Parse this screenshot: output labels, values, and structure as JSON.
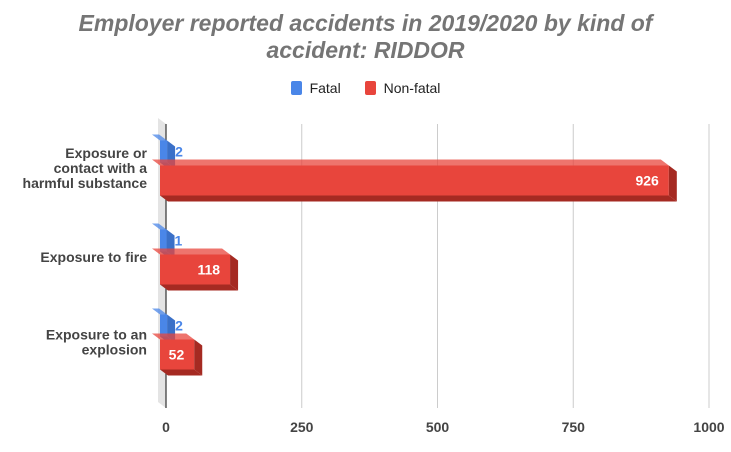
{
  "chart_data": {
    "type": "bar",
    "orientation": "horizontal",
    "title_lines": [
      "Employer reported accidents in 2019/2020 by kind of",
      "accident: RIDDOR"
    ],
    "categories": [
      [
        "Exposure or",
        "contact with a",
        "harmful substance"
      ],
      [
        "Exposure to fire"
      ],
      [
        "Exposure to an",
        "explosion"
      ]
    ],
    "series": [
      {
        "name": "Fatal",
        "color": "#4a86e8",
        "side_color": "#3a70c8",
        "label_color": "#4a86e8",
        "values": [
          2,
          1,
          2
        ]
      },
      {
        "name": "Non-fatal",
        "color": "#e8453c",
        "side_color": "#a52a22",
        "label_color": "#ffffff",
        "values": [
          926,
          118,
          52
        ]
      }
    ],
    "xlim": [
      0,
      1000
    ],
    "xticks": [
      0,
      250,
      500,
      750,
      1000
    ],
    "xtick_labels": [
      "0",
      "250",
      "500",
      "750",
      "1000"
    ],
    "legend_position": "top-center",
    "grid": true,
    "style": "3d"
  }
}
